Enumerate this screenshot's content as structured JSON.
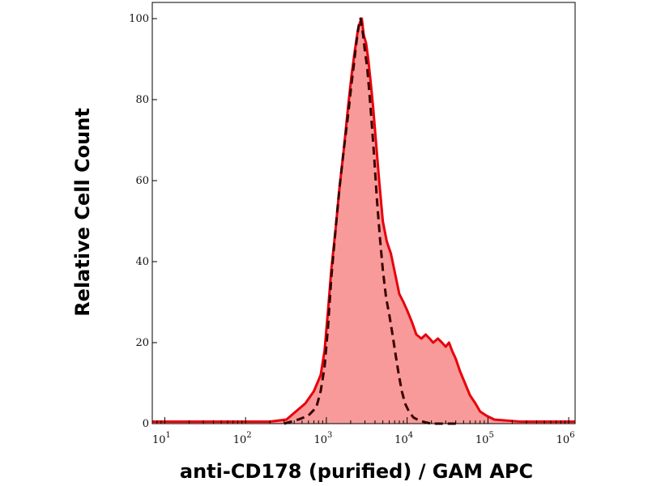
{
  "chart_data": {
    "type": "area",
    "title": "",
    "xlabel": "anti-CD178 (purified) / GAM APC",
    "ylabel": "Relative Cell Count",
    "x_scale": "log",
    "xlim": [
      7,
      1200000
    ],
    "ylim": [
      0,
      100
    ],
    "x_ticks": [
      {
        "base": "10",
        "exp": "1",
        "value": 10
      },
      {
        "base": "10",
        "exp": "2",
        "value": 100
      },
      {
        "base": "10",
        "exp": "3",
        "value": 1000
      },
      {
        "base": "10",
        "exp": "4",
        "value": 10000
      },
      {
        "base": "10",
        "exp": "5",
        "value": 100000
      },
      {
        "base": "10",
        "exp": "6",
        "value": 1000000
      }
    ],
    "y_ticks": [
      "0",
      "20",
      "40",
      "60",
      "80",
      "100"
    ],
    "grid": false,
    "series": [
      {
        "name": "",
        "style": "filled",
        "color": "#e8000b",
        "fill": "#f99a9a",
        "points": [
          [
            7,
            0.5
          ],
          [
            100,
            0.5
          ],
          [
            200,
            0.5
          ],
          [
            320,
            1
          ],
          [
            420,
            3
          ],
          [
            550,
            5
          ],
          [
            700,
            8
          ],
          [
            850,
            12
          ],
          [
            950,
            18
          ],
          [
            1050,
            28
          ],
          [
            1150,
            38
          ],
          [
            1300,
            48
          ],
          [
            1450,
            58
          ],
          [
            1650,
            68
          ],
          [
            1850,
            78
          ],
          [
            2050,
            86
          ],
          [
            2250,
            92
          ],
          [
            2450,
            97
          ],
          [
            2600,
            99
          ],
          [
            2750,
            100
          ],
          [
            2900,
            96
          ],
          [
            3100,
            94
          ],
          [
            3300,
            90
          ],
          [
            3550,
            84
          ],
          [
            3800,
            78
          ],
          [
            4100,
            70
          ],
          [
            4500,
            60
          ],
          [
            5000,
            50
          ],
          [
            5600,
            45
          ],
          [
            6300,
            42
          ],
          [
            7100,
            37
          ],
          [
            8000,
            32
          ],
          [
            9000,
            30
          ],
          [
            10000,
            28
          ],
          [
            11500,
            25
          ],
          [
            13000,
            22
          ],
          [
            15000,
            21
          ],
          [
            17000,
            22
          ],
          [
            19000,
            21
          ],
          [
            21000,
            20
          ],
          [
            24000,
            21
          ],
          [
            27000,
            20
          ],
          [
            30000,
            19
          ],
          [
            33000,
            20
          ],
          [
            36000,
            18
          ],
          [
            40000,
            16
          ],
          [
            45000,
            13
          ],
          [
            52000,
            10
          ],
          [
            60000,
            7
          ],
          [
            70000,
            5
          ],
          [
            80000,
            3
          ],
          [
            95000,
            2
          ],
          [
            120000,
            1
          ],
          [
            160000,
            0.8
          ],
          [
            250000,
            0.5
          ],
          [
            1200000,
            0.5
          ]
        ]
      },
      {
        "name": "",
        "style": "dashed",
        "color": "#3a0000",
        "points": [
          [
            300,
            0
          ],
          [
            450,
            1
          ],
          [
            600,
            2
          ],
          [
            750,
            4
          ],
          [
            850,
            8
          ],
          [
            950,
            14
          ],
          [
            1050,
            24
          ],
          [
            1150,
            36
          ],
          [
            1300,
            48
          ],
          [
            1450,
            58
          ],
          [
            1650,
            68
          ],
          [
            1850,
            76
          ],
          [
            2050,
            84
          ],
          [
            2200,
            89
          ],
          [
            2350,
            94
          ],
          [
            2500,
            98
          ],
          [
            2650,
            100
          ],
          [
            2850,
            96
          ],
          [
            3000,
            92
          ],
          [
            3200,
            88
          ],
          [
            3400,
            82
          ],
          [
            3650,
            74
          ],
          [
            3900,
            66
          ],
          [
            4200,
            56
          ],
          [
            4600,
            46
          ],
          [
            5000,
            38
          ],
          [
            5500,
            31
          ],
          [
            6000,
            27
          ],
          [
            6600,
            22
          ],
          [
            7200,
            17
          ],
          [
            7900,
            12
          ],
          [
            8600,
            8
          ],
          [
            9400,
            5
          ],
          [
            10500,
            3
          ],
          [
            12000,
            1.5
          ],
          [
            14000,
            0.8
          ],
          [
            17000,
            0.3
          ],
          [
            20000,
            0
          ],
          [
            35000,
            0
          ],
          [
            45000,
            0
          ]
        ]
      }
    ]
  }
}
